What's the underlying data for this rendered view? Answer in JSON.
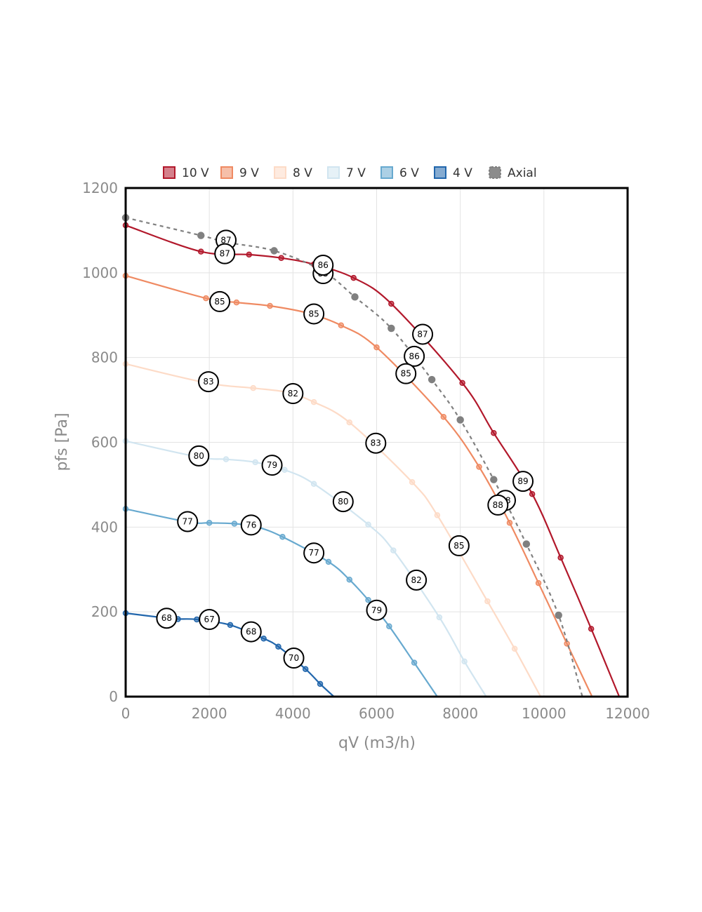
{
  "chart_data": {
    "type": "line",
    "xlabel": "qV (m3/h)",
    "ylabel": "pfs [Pa]",
    "xlim": [
      0,
      12000
    ],
    "ylim": [
      0,
      1200
    ],
    "x_ticks": [
      "0",
      "2000",
      "4000",
      "6000",
      "8000",
      "10000",
      "12000"
    ],
    "y_ticks": [
      "0",
      "200",
      "400",
      "600",
      "800",
      "1000",
      "1200"
    ],
    "grid": true,
    "legend_position": "top",
    "series": [
      {
        "name": "10 V",
        "color": "#b2182b",
        "dashed": false,
        "points": [
          [
            0,
            1112
          ],
          [
            1800,
            1050
          ],
          [
            2950,
            1043
          ],
          [
            3720,
            1035
          ],
          [
            4500,
            1020
          ],
          [
            5450,
            988
          ],
          [
            6350,
            927
          ],
          [
            8050,
            740
          ],
          [
            8800,
            622
          ],
          [
            9720,
            478
          ],
          [
            10400,
            328
          ],
          [
            11130,
            160
          ],
          [
            11800,
            0
          ]
        ]
      },
      {
        "name": "9 V",
        "color": "#ef8a62",
        "dashed": false,
        "points": [
          [
            0,
            993
          ],
          [
            1920,
            940
          ],
          [
            2650,
            930
          ],
          [
            3450,
            922
          ],
          [
            4350,
            905
          ],
          [
            5150,
            876
          ],
          [
            6000,
            824
          ],
          [
            7600,
            660
          ],
          [
            8450,
            542
          ],
          [
            9180,
            410
          ],
          [
            9870,
            268
          ],
          [
            10550,
            125
          ],
          [
            11150,
            0
          ]
        ]
      },
      {
        "name": "8 V",
        "color": "#fddbc7",
        "dashed": false,
        "points": [
          [
            0,
            785
          ],
          [
            1950,
            740
          ],
          [
            3050,
            728
          ],
          [
            3850,
            718
          ],
          [
            4500,
            695
          ],
          [
            5350,
            647
          ],
          [
            6850,
            506
          ],
          [
            7450,
            428
          ],
          [
            8650,
            225
          ],
          [
            9300,
            113
          ],
          [
            9920,
            0
          ]
        ]
      },
      {
        "name": "7 V",
        "color": "#d1e5f0",
        "dashed": false,
        "points": [
          [
            0,
            603
          ],
          [
            1750,
            565
          ],
          [
            2400,
            560
          ],
          [
            3100,
            553
          ],
          [
            3800,
            535
          ],
          [
            4500,
            502
          ],
          [
            5800,
            406
          ],
          [
            6400,
            345
          ],
          [
            7500,
            187
          ],
          [
            8100,
            83
          ],
          [
            8620,
            0
          ]
        ]
      },
      {
        "name": "6 V",
        "color": "#67a9cf",
        "dashed": false,
        "points": [
          [
            0,
            443
          ],
          [
            1500,
            412
          ],
          [
            2000,
            410
          ],
          [
            2600,
            408
          ],
          [
            3150,
            400
          ],
          [
            3750,
            377
          ],
          [
            4850,
            318
          ],
          [
            5350,
            276
          ],
          [
            5800,
            228
          ],
          [
            6300,
            166
          ],
          [
            6900,
            80
          ],
          [
            7450,
            0
          ]
        ]
      },
      {
        "name": "4 V",
        "color": "#2166ac",
        "dashed": false,
        "points": [
          [
            0,
            197
          ],
          [
            1000,
            185
          ],
          [
            1250,
            183
          ],
          [
            1700,
            182
          ],
          [
            2500,
            169
          ],
          [
            3300,
            137
          ],
          [
            3650,
            118
          ],
          [
            4300,
            65
          ],
          [
            4650,
            30
          ],
          [
            4980,
            0
          ]
        ]
      },
      {
        "name": "Axial",
        "color": "#808080",
        "dashed": true,
        "points": [
          [
            0,
            1130
          ],
          [
            1800,
            1088
          ],
          [
            2400,
            1072
          ],
          [
            3550,
            1052
          ],
          [
            4700,
            1005
          ],
          [
            5480,
            943
          ],
          [
            6350,
            869
          ],
          [
            7320,
            748
          ],
          [
            8000,
            653
          ],
          [
            8800,
            512
          ],
          [
            9580,
            360
          ],
          [
            10350,
            192
          ],
          [
            10920,
            0
          ]
        ]
      }
    ],
    "labels": [
      {
        "x": 2400,
        "y": 1077,
        "text": "87"
      },
      {
        "x": 2370,
        "y": 1045,
        "text": "87"
      },
      {
        "x": 4720,
        "y": 998,
        "text": "85"
      },
      {
        "x": 4720,
        "y": 1018,
        "text": "86"
      },
      {
        "x": 7100,
        "y": 855,
        "text": "87"
      },
      {
        "x": 6900,
        "y": 803,
        "text": "86"
      },
      {
        "x": 6700,
        "y": 762,
        "text": "85"
      },
      {
        "x": 9500,
        "y": 508,
        "text": "89"
      },
      {
        "x": 9080,
        "y": 463,
        "text": "88"
      },
      {
        "x": 8900,
        "y": 452,
        "text": "88"
      },
      {
        "x": 2250,
        "y": 932,
        "text": "85"
      },
      {
        "x": 4500,
        "y": 903,
        "text": "85"
      },
      {
        "x": 1980,
        "y": 743,
        "text": "83"
      },
      {
        "x": 4000,
        "y": 715,
        "text": "82"
      },
      {
        "x": 5980,
        "y": 598,
        "text": "83"
      },
      {
        "x": 7970,
        "y": 356,
        "text": "85"
      },
      {
        "x": 1750,
        "y": 568,
        "text": "80"
      },
      {
        "x": 3500,
        "y": 546,
        "text": "79"
      },
      {
        "x": 5200,
        "y": 460,
        "text": "80"
      },
      {
        "x": 6950,
        "y": 275,
        "text": "82"
      },
      {
        "x": 1480,
        "y": 413,
        "text": "77"
      },
      {
        "x": 3000,
        "y": 405,
        "text": "76"
      },
      {
        "x": 4500,
        "y": 339,
        "text": "77"
      },
      {
        "x": 6000,
        "y": 204,
        "text": "79"
      },
      {
        "x": 980,
        "y": 185,
        "text": "68"
      },
      {
        "x": 2000,
        "y": 182,
        "text": "67"
      },
      {
        "x": 3000,
        "y": 153,
        "text": "68"
      },
      {
        "x": 4020,
        "y": 91,
        "text": "70"
      }
    ]
  }
}
